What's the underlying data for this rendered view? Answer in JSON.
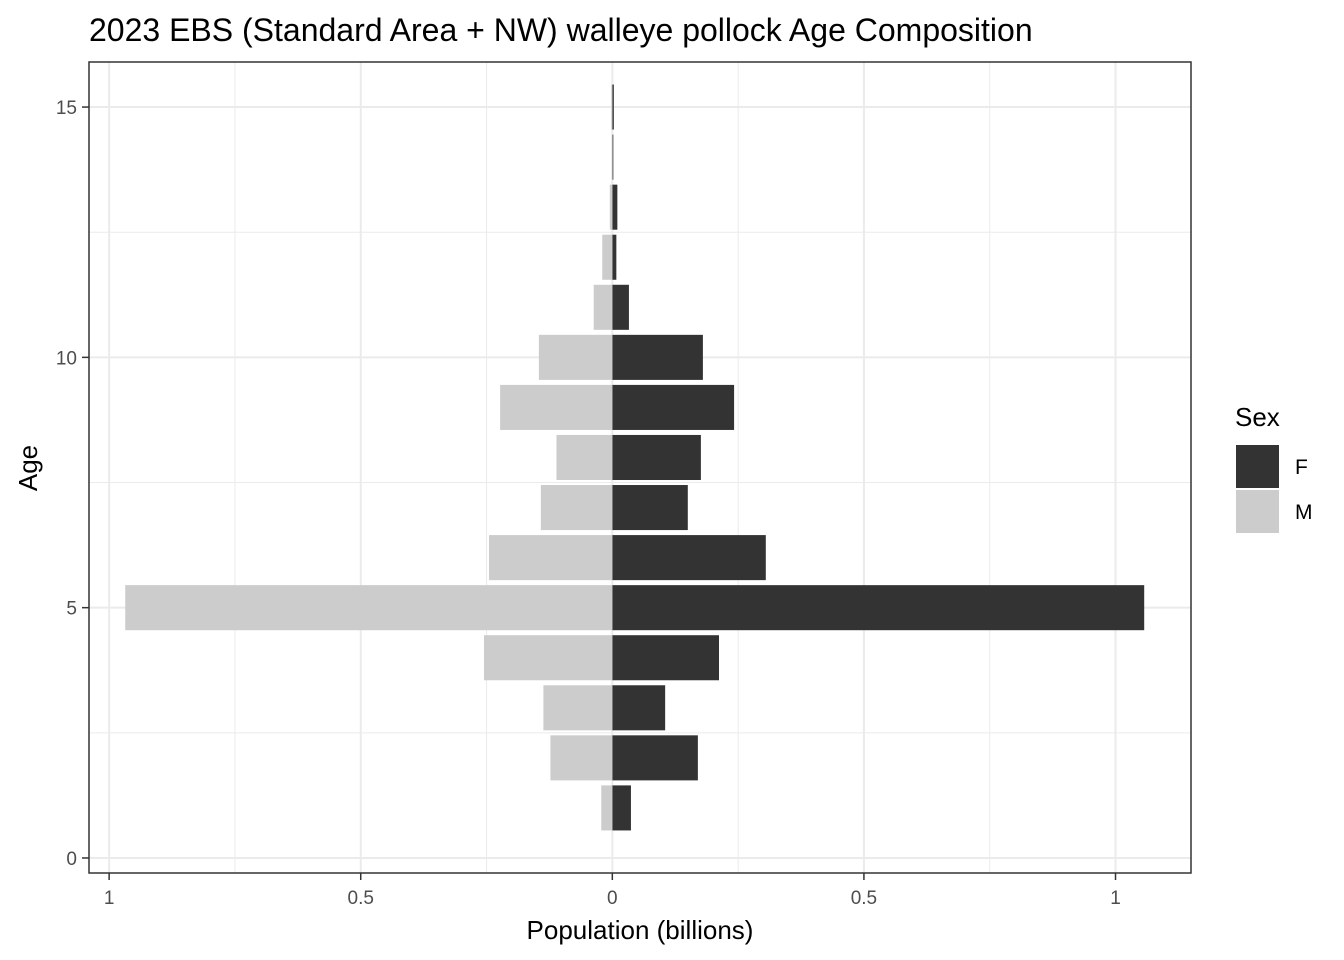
{
  "chart_data": {
    "type": "bar",
    "orientation": "horizontal",
    "layout": "population-pyramid",
    "title": "2023 EBS (Standard Area + NW) walleye pollock Age Composition",
    "xlabel": "Population (billions)",
    "ylabel": "Age",
    "xlim": [
      -1.04,
      1.15
    ],
    "ylim": [
      -0.3,
      15.9
    ],
    "x_ticks": [
      {
        "value": -1,
        "label": "1"
      },
      {
        "value": -0.5,
        "label": "0.5"
      },
      {
        "value": 0,
        "label": "0"
      },
      {
        "value": 0.5,
        "label": "0.5"
      },
      {
        "value": 1,
        "label": "1"
      }
    ],
    "y_ticks": [
      {
        "value": 0,
        "label": "0"
      },
      {
        "value": 5,
        "label": "5"
      },
      {
        "value": 10,
        "label": "10"
      },
      {
        "value": 15,
        "label": "15"
      }
    ],
    "grid": true,
    "legend": {
      "title": "Sex",
      "position": "right"
    },
    "ages": [
      1,
      2,
      3,
      4,
      5,
      6,
      7,
      8,
      9,
      10,
      11,
      12,
      13,
      14,
      15
    ],
    "series": [
      {
        "name": "F",
        "color": "#333333",
        "sign": 1,
        "values": [
          0.037,
          0.17,
          0.105,
          0.212,
          1.057,
          0.305,
          0.15,
          0.176,
          0.242,
          0.18,
          0.033,
          0.008,
          0.01,
          0.002,
          0.003
        ]
      },
      {
        "name": "M",
        "color": "#cccccc",
        "sign": -1,
        "values": [
          0.022,
          0.123,
          0.137,
          0.255,
          0.968,
          0.245,
          0.142,
          0.111,
          0.223,
          0.146,
          0.037,
          0.02,
          0.005,
          0.001,
          0.002
        ]
      }
    ]
  }
}
